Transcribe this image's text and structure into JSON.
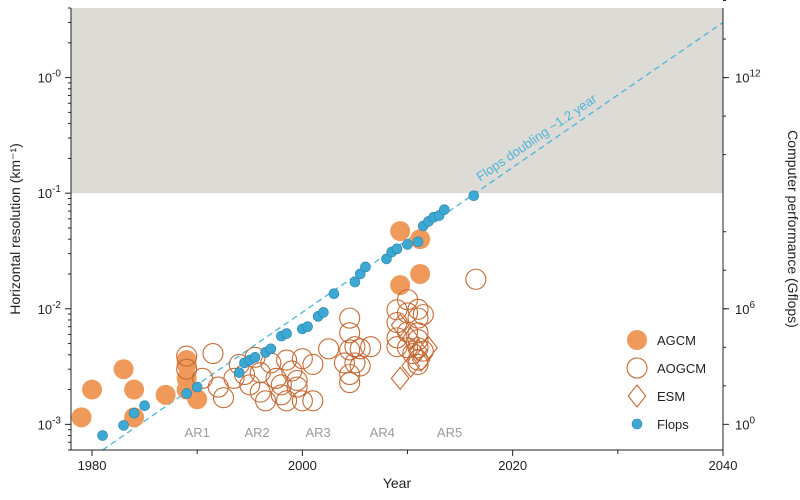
{
  "chart_data": {
    "type": "scatter",
    "xlabel": "Year",
    "ylabel_left": "Horizontal resolution (km⁻¹)",
    "ylabel_right": "Computer performance (Gflops)",
    "xlim": [
      1978,
      2040
    ],
    "ylim_left": [
      0.0006,
      4
    ],
    "y_scale": "log",
    "x_ticks": [
      1980,
      2000,
      2020,
      2040
    ],
    "x_tick_labels": [
      "1980",
      "2000",
      "2020",
      "2040"
    ],
    "y_ticks_left": [
      0.001,
      0.01,
      0.1,
      1
    ],
    "y_tick_labels_left": [
      {
        "base": "10",
        "exp": "-3"
      },
      {
        "base": "10",
        "exp": "-2"
      },
      {
        "base": "10",
        "exp": "-1"
      },
      {
        "base": "10",
        "exp": "-0"
      }
    ],
    "y_ticks_right": [
      {
        "at_resolution": 0.001,
        "base": "10",
        "exp": "0"
      },
      {
        "at_resolution": 0.01,
        "base": "10",
        "exp": "6"
      },
      {
        "at_resolution": 1,
        "base": "10",
        "exp": "12"
      }
    ],
    "shaded_region": {
      "from_resolution": 0.1,
      "color": "#dcdbd6"
    },
    "trend_line": {
      "label": "Flops doubling ~1.2 year",
      "from": [
        1981,
        0.0006
      ],
      "to": [
        2040,
        3
      ],
      "color": "#4fb3d9"
    },
    "ar_labels": [
      {
        "text": "AR1",
        "x": 1990
      },
      {
        "text": "AR2",
        "x": 1995.7
      },
      {
        "text": "AR3",
        "x": 2001.5
      },
      {
        "text": "AR4",
        "x": 2007.6
      },
      {
        "text": "AR5",
        "x": 2014
      }
    ],
    "legend": {
      "position": "bottom-right",
      "entries": [
        {
          "label": "AGCM",
          "marker": "filled-circle"
        },
        {
          "label": "AOGCM",
          "marker": "open-circle"
        },
        {
          "label": "ESM",
          "marker": "open-diamond"
        },
        {
          "label": "Flops",
          "marker": "flops-dot"
        }
      ]
    },
    "colors": {
      "agcm": "#ef9a5a",
      "aogcm": "#c46a35",
      "flops": "#3ba9d3",
      "flops_edge": "#2f7fa6"
    },
    "series": [
      {
        "name": "AGCM",
        "marker": "filled-circle",
        "points": [
          [
            1979,
            0.00115
          ],
          [
            1980,
            0.002
          ],
          [
            1983,
            0.003
          ],
          [
            1984,
            0.002
          ],
          [
            1984,
            0.00115
          ],
          [
            1987,
            0.0018
          ],
          [
            1989,
            0.0036
          ],
          [
            1989,
            0.0033
          ],
          [
            1989,
            0.0025
          ],
          [
            1989,
            0.002
          ],
          [
            1990,
            0.00165
          ],
          [
            2009.3,
            0.047
          ],
          [
            2009.3,
            0.016
          ],
          [
            2011.2,
            0.04
          ],
          [
            2011.2,
            0.02
          ]
        ]
      },
      {
        "name": "AOGCM",
        "marker": "open-circle",
        "points": [
          [
            1989,
            0.0039
          ],
          [
            1989,
            0.003
          ],
          [
            1990.5,
            0.0025
          ],
          [
            1991.5,
            0.0041
          ],
          [
            1992,
            0.0021
          ],
          [
            1992.5,
            0.0017
          ],
          [
            1993.5,
            0.0025
          ],
          [
            1994,
            0.0033
          ],
          [
            1994.5,
            0.0027
          ],
          [
            1995,
            0.0022
          ],
          [
            1995.5,
            0.0038
          ],
          [
            1996,
            0.0028
          ],
          [
            1996,
            0.0019
          ],
          [
            1996.5,
            0.0016
          ],
          [
            1997,
            0.0034
          ],
          [
            1997.5,
            0.0025
          ],
          [
            1998,
            0.0022
          ],
          [
            1998,
            0.0018
          ],
          [
            1998.5,
            0.0036
          ],
          [
            1998.5,
            0.0016
          ],
          [
            1999,
            0.0029
          ],
          [
            1999.5,
            0.0024
          ],
          [
            1999.5,
            0.0021
          ],
          [
            2000,
            0.0037
          ],
          [
            2000,
            0.0016
          ],
          [
            2001,
            0.0033
          ],
          [
            2001,
            0.0016
          ],
          [
            2002.5,
            0.0045
          ],
          [
            2004,
            0.0034
          ],
          [
            2004.5,
            0.0083
          ],
          [
            2004.5,
            0.0062
          ],
          [
            2004.5,
            0.0044
          ],
          [
            2004.5,
            0.0027
          ],
          [
            2004.5,
            0.0023
          ],
          [
            2005,
            0.0047
          ],
          [
            2005,
            0.0034
          ],
          [
            2005.5,
            0.0045
          ],
          [
            2005.5,
            0.0032
          ],
          [
            2006.5,
            0.0047
          ],
          [
            2009,
            0.0098
          ],
          [
            2009,
            0.0076
          ],
          [
            2009,
            0.0056
          ],
          [
            2009,
            0.0047
          ],
          [
            2010,
            0.012
          ],
          [
            2010,
            0.0092
          ],
          [
            2010,
            0.0063
          ],
          [
            2010,
            0.0046
          ],
          [
            2010.5,
            0.0041
          ],
          [
            2011,
            0.0099
          ],
          [
            2011,
            0.0083
          ],
          [
            2011,
            0.0062
          ],
          [
            2011,
            0.0054
          ],
          [
            2011,
            0.0046
          ],
          [
            2011,
            0.0036
          ],
          [
            2011,
            0.0033
          ],
          [
            2011.5,
            0.0089
          ],
          [
            2011.5,
            0.0043
          ],
          [
            2016.5,
            0.018
          ]
        ]
      },
      {
        "name": "ESM",
        "marker": "open-diamond",
        "points": [
          [
            2009.3,
            0.0025
          ],
          [
            2009.3,
            0.0072
          ],
          [
            2010.3,
            0.0032
          ],
          [
            2010.3,
            0.0055
          ],
          [
            2011,
            0.0044
          ],
          [
            2012,
            0.0046
          ],
          [
            2011.3,
            0.0036
          ]
        ]
      },
      {
        "name": "Flops",
        "marker": "flops-dot",
        "points": [
          [
            1981,
            0.0008
          ],
          [
            1983,
            0.00098
          ],
          [
            1984,
            0.00125
          ],
          [
            1985,
            0.00145
          ],
          [
            1989,
            0.00185
          ],
          [
            1990,
            0.0021
          ],
          [
            1994,
            0.0028
          ],
          [
            1994.5,
            0.0034
          ],
          [
            1995,
            0.0036
          ],
          [
            1995.5,
            0.0038
          ],
          [
            1996.5,
            0.0042
          ],
          [
            1997,
            0.0045
          ],
          [
            1998,
            0.0058
          ],
          [
            1998.5,
            0.0061
          ],
          [
            2000,
            0.0067
          ],
          [
            2000.5,
            0.007
          ],
          [
            2001.5,
            0.0086
          ],
          [
            2002,
            0.0093
          ],
          [
            2003,
            0.0135
          ],
          [
            2005,
            0.017
          ],
          [
            2005.5,
            0.02
          ],
          [
            2006,
            0.023
          ],
          [
            2008,
            0.027
          ],
          [
            2008.5,
            0.031
          ],
          [
            2009,
            0.033
          ],
          [
            2010,
            0.036
          ],
          [
            2011,
            0.038
          ],
          [
            2011.5,
            0.052
          ],
          [
            2012,
            0.057
          ],
          [
            2012.5,
            0.062
          ],
          [
            2013,
            0.064
          ],
          [
            2013.5,
            0.072
          ],
          [
            2016.3,
            0.095
          ]
        ]
      }
    ]
  }
}
